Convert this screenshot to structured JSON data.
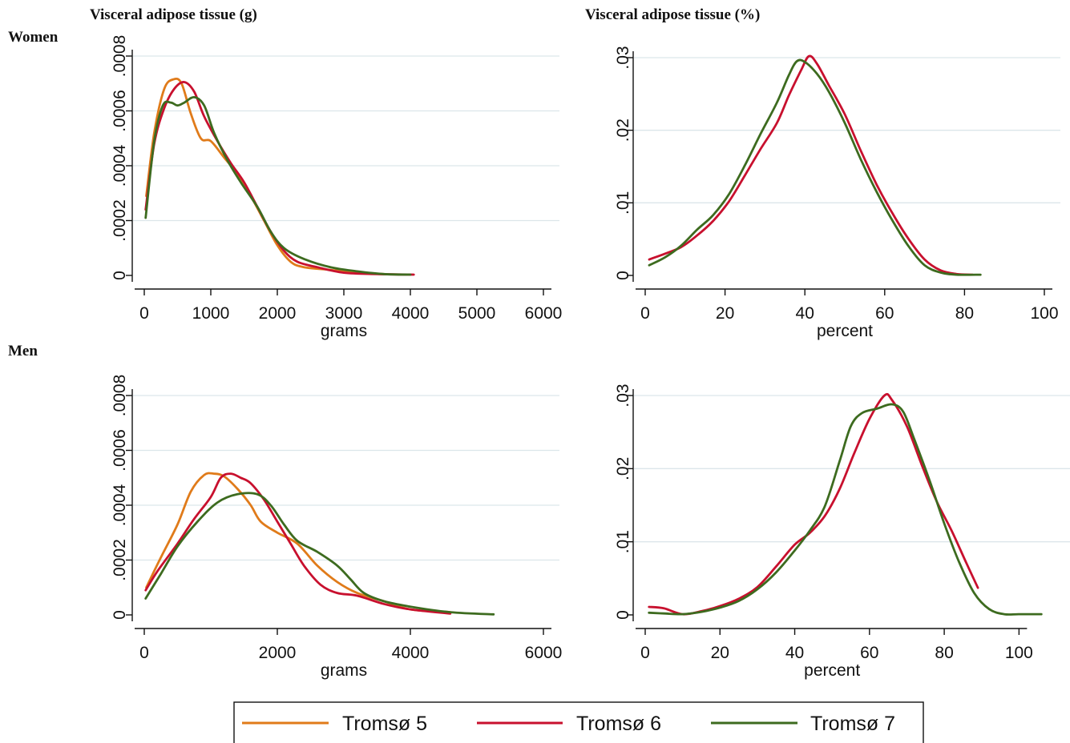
{
  "headers": {
    "col_left": "Visceral adipose tissue (g)",
    "col_right": "Visceral adipose tissue (%)",
    "row_women": "Women",
    "row_men": "Men"
  },
  "legend": {
    "items": [
      {
        "label": "Tromsø 5",
        "color": "#e07b1a"
      },
      {
        "label": "Tromsø 6",
        "color": "#c8102e"
      },
      {
        "label": "Tromsø 7",
        "color": "#3d6b1f"
      }
    ]
  },
  "chart_data": [
    {
      "id": "women-grams",
      "type": "line",
      "xlabel": "grams",
      "ylabel": "",
      "xlim": [
        0,
        6000
      ],
      "ylim": [
        0,
        0.0008
      ],
      "xticks": [
        0,
        1000,
        2000,
        3000,
        4000,
        5000,
        6000
      ],
      "xtick_labels": [
        "0",
        "1000",
        "2000",
        "3000",
        "4000",
        "5000",
        "6000"
      ],
      "yticks": [
        0,
        0.0002,
        0.0004,
        0.0006,
        0.0008
      ],
      "ytick_labels": [
        "0",
        ".0002",
        ".0004",
        ".0006",
        ".0008"
      ],
      "series": [
        {
          "name": "Tromsø 5",
          "points": [
            [
              30,
              0.00029
            ],
            [
              150,
              0.00052
            ],
            [
              300,
              0.00068
            ],
            [
              440,
              0.000715
            ],
            [
              560,
              0.0007
            ],
            [
              700,
              0.00059
            ],
            [
              850,
              0.0005
            ],
            [
              1000,
              0.00049
            ],
            [
              1200,
              0.00043
            ],
            [
              1400,
              0.00037
            ],
            [
              1600,
              0.00029
            ],
            [
              1800,
              0.0002
            ],
            [
              2000,
              0.00011
            ],
            [
              2200,
              5e-05
            ],
            [
              2400,
              3e-05
            ],
            [
              2800,
              2e-05
            ],
            [
              3200,
              1e-05
            ],
            [
              3600,
              5e-06
            ]
          ]
        },
        {
          "name": "Tromsø 6",
          "points": [
            [
              20,
              0.00024
            ],
            [
              150,
              0.00048
            ],
            [
              300,
              0.00061
            ],
            [
              450,
              0.00068
            ],
            [
              600,
              0.000705
            ],
            [
              750,
              0.00067
            ],
            [
              900,
              0.00058
            ],
            [
              1100,
              0.00049
            ],
            [
              1300,
              0.00041
            ],
            [
              1500,
              0.00034
            ],
            [
              1700,
              0.00025
            ],
            [
              1900,
              0.00016
            ],
            [
              2100,
              9e-05
            ],
            [
              2300,
              5e-05
            ],
            [
              2600,
              3e-05
            ],
            [
              3000,
              1e-05
            ],
            [
              3500,
              5e-06
            ],
            [
              4050,
              3e-06
            ]
          ]
        },
        {
          "name": "Tromsø 7",
          "points": [
            [
              20,
              0.00021
            ],
            [
              150,
              0.00049
            ],
            [
              280,
              0.00062
            ],
            [
              400,
              0.00063
            ],
            [
              500,
              0.00062
            ],
            [
              600,
              0.00063
            ],
            [
              750,
              0.00065
            ],
            [
              900,
              0.00062
            ],
            [
              1050,
              0.00052
            ],
            [
              1250,
              0.00042
            ],
            [
              1450,
              0.00034
            ],
            [
              1700,
              0.00025
            ],
            [
              1900,
              0.00016
            ],
            [
              2100,
              0.0001
            ],
            [
              2400,
              6e-05
            ],
            [
              2800,
              3e-05
            ],
            [
              3200,
              1.5e-05
            ],
            [
              3600,
              5e-06
            ],
            [
              4000,
              3e-06
            ]
          ]
        }
      ]
    },
    {
      "id": "women-percent",
      "type": "line",
      "xlabel": "percent",
      "ylabel": "",
      "xlim": [
        0,
        100
      ],
      "ylim": [
        0,
        0.03
      ],
      "xticks": [
        0,
        20,
        40,
        60,
        80,
        100
      ],
      "xtick_labels": [
        "0",
        "20",
        "40",
        "60",
        "80",
        "100"
      ],
      "yticks": [
        0,
        0.01,
        0.02,
        0.03
      ],
      "ytick_labels": [
        "0",
        ".01",
        ".02",
        ".03"
      ],
      "series": [
        {
          "name": "Tromsø 6",
          "points": [
            [
              1,
              0.0022
            ],
            [
              5,
              0.003
            ],
            [
              9,
              0.0039
            ],
            [
              13,
              0.0055
            ],
            [
              17,
              0.0075
            ],
            [
              21,
              0.0102
            ],
            [
              25,
              0.0138
            ],
            [
              29,
              0.0175
            ],
            [
              33,
              0.021
            ],
            [
              36,
              0.0248
            ],
            [
              39,
              0.0282
            ],
            [
              41,
              0.0302
            ],
            [
              43,
              0.0292
            ],
            [
              46,
              0.0262
            ],
            [
              50,
              0.0222
            ],
            [
              54,
              0.0172
            ],
            [
              58,
              0.0125
            ],
            [
              62,
              0.0085
            ],
            [
              66,
              0.005
            ],
            [
              70,
              0.0022
            ],
            [
              74,
              0.0007
            ],
            [
              78,
              0.0002
            ],
            [
              82,
              0.0001
            ]
          ]
        },
        {
          "name": "Tromsø 7",
          "points": [
            [
              1,
              0.0014
            ],
            [
              5,
              0.0025
            ],
            [
              9,
              0.0041
            ],
            [
              13,
              0.0063
            ],
            [
              17,
              0.0083
            ],
            [
              21,
              0.0112
            ],
            [
              25,
              0.0152
            ],
            [
              29,
              0.0196
            ],
            [
              33,
              0.0238
            ],
            [
              36,
              0.0276
            ],
            [
              38,
              0.0295
            ],
            [
              40,
              0.0294
            ],
            [
              43,
              0.0278
            ],
            [
              46,
              0.0253
            ],
            [
              50,
              0.021
            ],
            [
              54,
              0.016
            ],
            [
              58,
              0.0115
            ],
            [
              62,
              0.0075
            ],
            [
              66,
              0.004
            ],
            [
              70,
              0.0014
            ],
            [
              74,
              0.0004
            ],
            [
              78,
              0.0001
            ],
            [
              84,
              0.0001
            ]
          ]
        }
      ]
    },
    {
      "id": "men-grams",
      "type": "line",
      "xlabel": "grams",
      "ylabel": "",
      "xlim": [
        0,
        6000
      ],
      "ylim": [
        0,
        0.0008
      ],
      "xticks": [
        0,
        2000,
        4000,
        6000
      ],
      "xtick_labels": [
        "0",
        "2000",
        "4000",
        "6000"
      ],
      "yticks": [
        0,
        0.0002,
        0.0004,
        0.0006,
        0.0008
      ],
      "ytick_labels": [
        "0",
        ".0002",
        ".0004",
        ".0006",
        ".0008"
      ],
      "series": [
        {
          "name": "Tromsø 5",
          "points": [
            [
              30,
              0.0001
            ],
            [
              250,
              0.00021
            ],
            [
              500,
              0.00033
            ],
            [
              700,
              0.00045
            ],
            [
              900,
              0.00051
            ],
            [
              1050,
              0.000515
            ],
            [
              1200,
              0.000505
            ],
            [
              1400,
              0.00046
            ],
            [
              1600,
              0.0004
            ],
            [
              1750,
              0.00034
            ],
            [
              2000,
              0.0003
            ],
            [
              2300,
              0.00026
            ],
            [
              2600,
              0.00018
            ],
            [
              2900,
              0.00012
            ],
            [
              3200,
              8e-05
            ],
            [
              3600,
              5e-05
            ],
            [
              4000,
              2e-05
            ],
            [
              4600,
              1e-05
            ]
          ]
        },
        {
          "name": "Tromsø 6",
          "points": [
            [
              20,
              9e-05
            ],
            [
              200,
              0.00016
            ],
            [
              500,
              0.00026
            ],
            [
              750,
              0.00035
            ],
            [
              1000,
              0.00043
            ],
            [
              1150,
              0.0005
            ],
            [
              1300,
              0.000515
            ],
            [
              1450,
              0.0005
            ],
            [
              1600,
              0.00048
            ],
            [
              1800,
              0.00042
            ],
            [
              2000,
              0.00034
            ],
            [
              2200,
              0.00026
            ],
            [
              2400,
              0.00018
            ],
            [
              2650,
              0.00011
            ],
            [
              2900,
              8e-05
            ],
            [
              3200,
              7e-05
            ],
            [
              3600,
              4e-05
            ],
            [
              4000,
              2e-05
            ],
            [
              4600,
              5e-06
            ]
          ]
        },
        {
          "name": "Tromsø 7",
          "points": [
            [
              20,
              6e-05
            ],
            [
              250,
              0.00015
            ],
            [
              500,
              0.00025
            ],
            [
              800,
              0.00034
            ],
            [
              1100,
              0.00041
            ],
            [
              1400,
              0.00044
            ],
            [
              1700,
              0.00044
            ],
            [
              1900,
              0.0004
            ],
            [
              2100,
              0.00033
            ],
            [
              2300,
              0.00027
            ],
            [
              2600,
              0.00023
            ],
            [
              2900,
              0.00018
            ],
            [
              3100,
              0.00013
            ],
            [
              3300,
              8e-05
            ],
            [
              3600,
              5e-05
            ],
            [
              4000,
              3e-05
            ],
            [
              4600,
              1e-05
            ],
            [
              5250,
              2e-06
            ]
          ]
        }
      ]
    },
    {
      "id": "men-percent",
      "type": "line",
      "xlabel": "percent",
      "ylabel": "",
      "xlim": [
        0,
        110
      ],
      "ylim": [
        0,
        0.03
      ],
      "xticks": [
        0,
        20,
        40,
        60,
        80,
        100
      ],
      "xtick_labels": [
        "0",
        "20",
        "40",
        "60",
        "80",
        "100"
      ],
      "yticks": [
        0,
        0.01,
        0.02,
        0.03
      ],
      "ytick_labels": [
        "0",
        ".01",
        ".02",
        ".03"
      ],
      "series": [
        {
          "name": "Tromsø 6",
          "points": [
            [
              1,
              0.0011
            ],
            [
              5,
              0.0009
            ],
            [
              10,
              0.0001
            ],
            [
              15,
              0.0005
            ],
            [
              20,
              0.0012
            ],
            [
              25,
              0.0022
            ],
            [
              30,
              0.0038
            ],
            [
              35,
              0.0066
            ],
            [
              40,
              0.0096
            ],
            [
              44,
              0.0112
            ],
            [
              48,
              0.0135
            ],
            [
              52,
              0.0172
            ],
            [
              56,
              0.0222
            ],
            [
              60,
              0.0268
            ],
            [
              64,
              0.03
            ],
            [
              66,
              0.0294
            ],
            [
              70,
              0.0258
            ],
            [
              74,
              0.0205
            ],
            [
              78,
              0.0155
            ],
            [
              82,
              0.0115
            ],
            [
              86,
              0.007
            ],
            [
              89,
              0.0037
            ]
          ]
        },
        {
          "name": "Tromsø 7",
          "points": [
            [
              1,
              0.0003
            ],
            [
              5,
              0.0002
            ],
            [
              10,
              0.0001
            ],
            [
              15,
              0.0004
            ],
            [
              20,
              0.001
            ],
            [
              25,
              0.0019
            ],
            [
              30,
              0.0035
            ],
            [
              35,
              0.0058
            ],
            [
              40,
              0.0088
            ],
            [
              44,
              0.0115
            ],
            [
              48,
              0.0148
            ],
            [
              52,
              0.021
            ],
            [
              55,
              0.0258
            ],
            [
              58,
              0.0276
            ],
            [
              62,
              0.0282
            ],
            [
              66,
              0.0288
            ],
            [
              69,
              0.0278
            ],
            [
              72,
              0.024
            ],
            [
              76,
              0.0185
            ],
            [
              80,
              0.0125
            ],
            [
              84,
              0.0072
            ],
            [
              88,
              0.003
            ],
            [
              92,
              0.0008
            ],
            [
              96,
              0.0001
            ],
            [
              100,
              0.0001
            ],
            [
              106,
              0.0001
            ]
          ]
        }
      ]
    }
  ]
}
